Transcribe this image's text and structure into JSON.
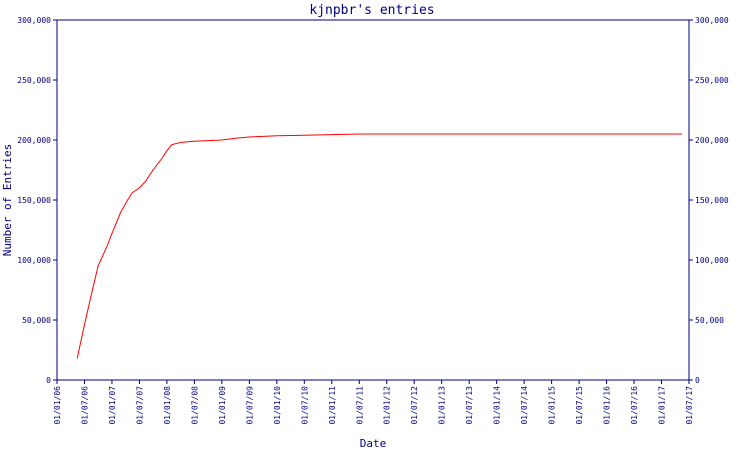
{
  "chart_data": {
    "type": "line",
    "title": "kjnpbr's entries",
    "xlabel": "Date",
    "ylabel": "Number of Entries",
    "ylim": [
      0,
      300000
    ],
    "y_ticks": [
      0,
      50000,
      100000,
      150000,
      200000,
      250000,
      300000
    ],
    "y_tick_labels": [
      "0",
      "50,000",
      "100,000",
      "150,000",
      "200,000",
      "250,000",
      "300,000"
    ],
    "right_y_axis": true,
    "grid": false,
    "x_ticks": [
      "01/01/06",
      "01/07/06",
      "01/01/07",
      "01/07/07",
      "01/01/08",
      "01/07/08",
      "01/01/09",
      "01/07/09",
      "01/01/10",
      "01/07/10",
      "01/01/11",
      "01/07/11",
      "01/01/12",
      "01/07/12",
      "01/01/13",
      "01/07/13",
      "01/01/14",
      "01/07/14",
      "01/01/15",
      "01/07/15",
      "01/01/16",
      "01/07/16",
      "01/01/17",
      "01/07/17"
    ],
    "colors": {
      "axis": "#000080",
      "series": "#ff0000",
      "text": "#000080"
    },
    "series": [
      {
        "x": [
          "2006-05-15",
          "2006-07-01",
          "2006-08-15",
          "2006-10-01",
          "2006-12-01",
          "2007-01-01",
          "2007-03-01",
          "2007-04-15",
          "2007-05-15",
          "2007-07-01",
          "2007-08-15",
          "2007-10-01",
          "2007-12-01",
          "2008-01-01",
          "2008-02-01",
          "2008-04-01",
          "2008-07-01",
          "2008-10-01",
          "2009-01-01",
          "2009-04-01",
          "2009-07-01",
          "2009-10-01",
          "2010-01-01",
          "2010-07-01",
          "2011-01-01",
          "2011-07-01",
          "2012-01-01",
          "2013-01-01",
          "2014-01-01",
          "2015-01-01",
          "2016-01-01",
          "2017-01-01",
          "2017-05-15"
        ],
        "values": [
          18000,
          45000,
          70000,
          95000,
          112000,
          122000,
          140000,
          150000,
          156000,
          160000,
          166000,
          175000,
          185000,
          191000,
          196000,
          198000,
          199000,
          199500,
          200000,
          201500,
          202500,
          203000,
          203500,
          204000,
          204500,
          205000,
          205000,
          205000,
          205000,
          205000,
          205000,
          205000,
          205000
        ]
      }
    ]
  }
}
